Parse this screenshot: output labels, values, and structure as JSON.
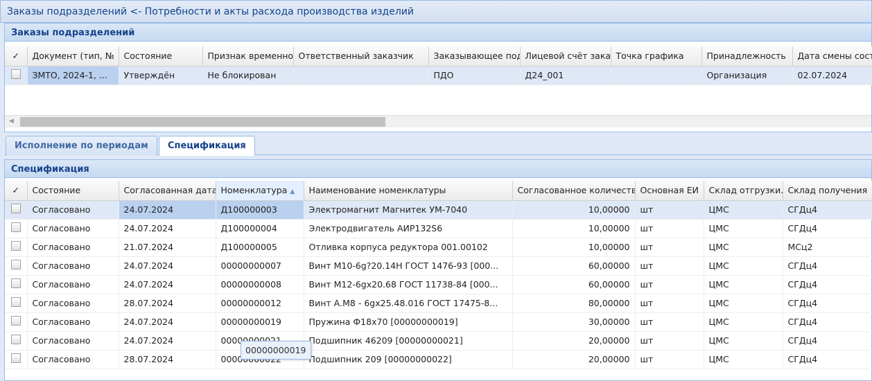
{
  "window": {
    "title": "Заказы подразделений <- Потребности и акты расхода производства изделий"
  },
  "orders": {
    "title": "Заказы подразделений",
    "columns": [
      "✓",
      "Документ (тип, №",
      "Состояние",
      "Признак временно",
      "Ответственный заказчик",
      "Заказывающее под",
      "Лицевой счёт зака",
      "Точка графика",
      "Принадлежность",
      "Дата смены сост"
    ],
    "rows": [
      [
        "ЗМТО, 2024-1, ...",
        "Утверждён",
        "Не блокирован",
        "",
        "ПДО",
        "Д24_001",
        "",
        "Организация",
        "02.07.2024"
      ]
    ]
  },
  "tabs": [
    {
      "label": "Исполнение по периодам",
      "active": false
    },
    {
      "label": "Спецификация",
      "active": true
    }
  ],
  "spec": {
    "title": "Спецификация",
    "columns": [
      "✓",
      "Состояние",
      "Согласованная дата",
      "Номенклатура",
      "Наименование номенклатуры",
      "Согласованное количеств",
      "Основная ЕИ",
      "Склад отгрузки.",
      "Склад получения"
    ],
    "sorted_column": "Номенклатура",
    "sort_direction": "asc",
    "rows": [
      [
        "Согласовано",
        "24.07.2024",
        "Д100000003",
        "Электромагнит Магнитек УМ-7040",
        "10,00000",
        "шт",
        "ЦМС",
        "СГДц4"
      ],
      [
        "Согласовано",
        "24.07.2024",
        "Д100000004",
        "Электродвигатель АИР132S6",
        "10,00000",
        "шт",
        "ЦМС",
        "СГДц4"
      ],
      [
        "Согласовано",
        "21.07.2024",
        "Д100000005",
        "Отливка корпуса редуктора 001.00102",
        "10,00000",
        "шт",
        "ЦМС",
        "МСц2"
      ],
      [
        "Согласовано",
        "24.07.2024",
        "00000000007",
        "Винт М10-6g?20.14Н ГОСТ 1476-93 [000...",
        "60,00000",
        "шт",
        "ЦМС",
        "СГДц4"
      ],
      [
        "Согласовано",
        "24.07.2024",
        "00000000008",
        "Винт М12-6gx20.68 ГОСТ 11738-84 [000...",
        "60,00000",
        "шт",
        "ЦМС",
        "СГДц4"
      ],
      [
        "Согласовано",
        "28.07.2024",
        "00000000012",
        "Винт А.М8 - 6gx25.48.016 ГОСТ 17475-8...",
        "80,00000",
        "шт",
        "ЦМС",
        "СГДц4"
      ],
      [
        "Согласовано",
        "24.07.2024",
        "00000000019",
        "Пружина Ф18x70 [00000000019]",
        "30,00000",
        "шт",
        "ЦМС",
        "СГДц4"
      ],
      [
        "Согласовано",
        "24.07.2024",
        "00000000021",
        "Подшипник 46209 [00000000021]",
        "20,00000",
        "шт",
        "ЦМС",
        "СГДц4"
      ],
      [
        "Согласовано",
        "28.07.2024",
        "00000000022",
        "Подшипник 209 [00000000022]",
        "20,00000",
        "шт",
        "ЦМС",
        "СГДц4"
      ]
    ]
  },
  "tooltip": {
    "text": "00000000019"
  }
}
